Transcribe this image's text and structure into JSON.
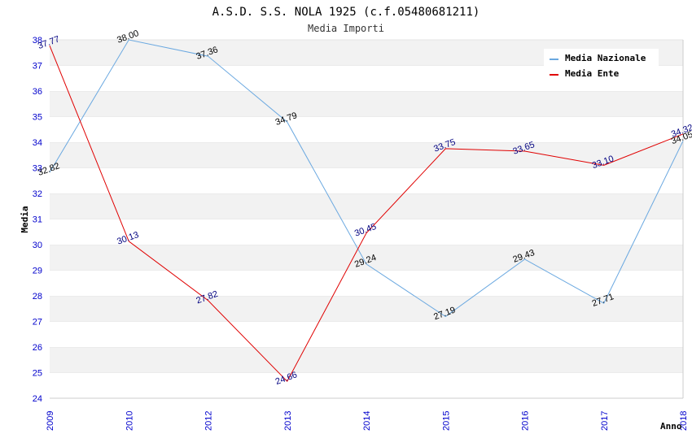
{
  "chart_data": {
    "type": "line",
    "title": "A.S.D. S.S. NOLA 1925 (c.f.05480681211)",
    "subtitle": "Media Importi",
    "xlabel": "Anno",
    "ylabel": "Media",
    "categories": [
      "2009",
      "2010",
      "2012",
      "2013",
      "2014",
      "2015",
      "2016",
      "2017",
      "2018"
    ],
    "ylim": [
      24,
      38
    ],
    "yticks": [
      "24",
      "25",
      "26",
      "27",
      "28",
      "29",
      "30",
      "31",
      "32",
      "33",
      "34",
      "35",
      "36",
      "37",
      "38"
    ],
    "grid": "horizontal alternating bands",
    "legend_position": "top-right",
    "series": [
      {
        "name": "Media Nazionale",
        "color": "#6aa8e0",
        "label_color": "#000000",
        "values": [
          32.82,
          38.0,
          37.36,
          34.79,
          29.24,
          27.19,
          29.43,
          27.71,
          34.05
        ],
        "labels": [
          "32.82",
          "38.00",
          "37.36",
          "34.79",
          "29.24",
          "27.19",
          "29.43",
          "27.71",
          "34.05"
        ]
      },
      {
        "name": "Media Ente",
        "color": "#e00000",
        "label_color": "#000080",
        "values": [
          37.77,
          30.13,
          27.82,
          24.66,
          30.45,
          33.75,
          33.65,
          33.1,
          34.32
        ],
        "labels": [
          "37.77",
          "30.13",
          "27.82",
          "24.66",
          "30.45",
          "33.75",
          "33.65",
          "33.10",
          "34.32"
        ]
      }
    ]
  }
}
